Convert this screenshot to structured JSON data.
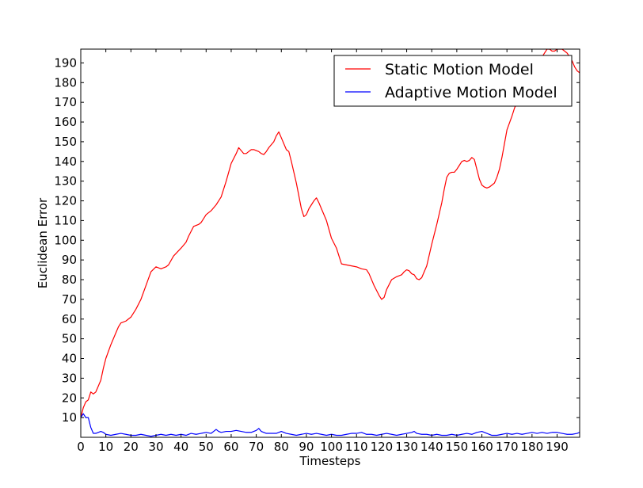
{
  "chart_data": {
    "type": "line",
    "title": "",
    "xlabel": "Timesteps",
    "ylabel": "Euclidean Error",
    "xlim": [
      0,
      199
    ],
    "ylim": [
      0,
      197
    ],
    "xticks": [
      0,
      10,
      20,
      30,
      40,
      50,
      60,
      70,
      80,
      90,
      100,
      110,
      120,
      130,
      140,
      150,
      160,
      170,
      180,
      190
    ],
    "yticks": [
      10,
      20,
      30,
      40,
      50,
      60,
      70,
      80,
      90,
      100,
      110,
      120,
      130,
      140,
      150,
      160,
      170,
      180,
      190
    ],
    "grid": false,
    "legend_position": "top-right",
    "series": [
      {
        "name": "Static Motion Model",
        "color": "#ff0000",
        "points": [
          [
            0,
            10
          ],
          [
            1,
            15
          ],
          [
            2,
            18
          ],
          [
            3,
            19
          ],
          [
            4,
            23
          ],
          [
            5,
            22
          ],
          [
            6,
            23
          ],
          [
            7,
            26
          ],
          [
            8,
            29
          ],
          [
            9,
            35
          ],
          [
            10,
            40
          ],
          [
            12,
            47
          ],
          [
            14,
            53
          ],
          [
            15,
            56
          ],
          [
            16,
            58
          ],
          [
            18,
            59
          ],
          [
            20,
            61
          ],
          [
            22,
            65
          ],
          [
            24,
            70
          ],
          [
            26,
            77
          ],
          [
            28,
            84
          ],
          [
            30,
            86.5
          ],
          [
            32,
            85.5
          ],
          [
            34,
            86.5
          ],
          [
            35,
            87.5
          ],
          [
            37,
            92
          ],
          [
            40,
            96
          ],
          [
            42,
            99
          ],
          [
            43,
            102
          ],
          [
            45,
            107
          ],
          [
            47,
            108
          ],
          [
            48,
            109
          ],
          [
            50,
            113
          ],
          [
            52,
            115
          ],
          [
            54,
            118
          ],
          [
            55,
            120
          ],
          [
            56,
            122
          ],
          [
            58,
            130
          ],
          [
            60,
            139
          ],
          [
            62,
            144
          ],
          [
            63,
            147
          ],
          [
            64,
            145.5
          ],
          [
            65,
            144
          ],
          [
            66,
            144
          ],
          [
            67,
            145
          ],
          [
            68,
            146
          ],
          [
            69,
            146
          ],
          [
            70,
            145.5
          ],
          [
            71,
            145
          ],
          [
            72,
            144
          ],
          [
            73,
            143.5
          ],
          [
            74,
            145
          ],
          [
            75,
            147
          ],
          [
            77,
            150
          ],
          [
            78,
            153
          ],
          [
            79,
            155
          ],
          [
            80,
            152
          ],
          [
            82,
            146
          ],
          [
            83,
            145
          ],
          [
            84,
            140
          ],
          [
            86,
            129
          ],
          [
            88,
            116
          ],
          [
            89,
            112
          ],
          [
            90,
            113
          ],
          [
            91,
            116
          ],
          [
            92,
            118
          ],
          [
            93,
            120
          ],
          [
            94,
            121.5
          ],
          [
            95,
            119
          ],
          [
            96,
            116
          ],
          [
            98,
            110
          ],
          [
            100,
            101
          ],
          [
            102,
            96
          ],
          [
            103,
            92
          ],
          [
            104,
            88
          ],
          [
            106,
            87.5
          ],
          [
            108,
            87
          ],
          [
            110,
            86.5
          ],
          [
            112,
            85.5
          ],
          [
            114,
            85
          ],
          [
            115,
            83
          ],
          [
            117,
            77
          ],
          [
            119,
            72
          ],
          [
            120,
            70
          ],
          [
            121,
            71
          ],
          [
            122,
            75
          ],
          [
            124,
            80
          ],
          [
            126,
            81.5
          ],
          [
            128,
            82.5
          ],
          [
            129,
            84
          ],
          [
            130,
            85
          ],
          [
            131,
            84.5
          ],
          [
            132,
            83
          ],
          [
            133,
            82.5
          ],
          [
            134,
            80.5
          ],
          [
            135,
            80
          ],
          [
            136,
            81
          ],
          [
            138,
            87
          ],
          [
            140,
            98
          ],
          [
            142,
            108
          ],
          [
            144,
            119
          ],
          [
            145,
            126
          ],
          [
            146,
            132
          ],
          [
            147,
            134
          ],
          [
            148,
            134.5
          ],
          [
            149,
            134.5
          ],
          [
            150,
            136
          ],
          [
            151,
            138
          ],
          [
            152,
            140
          ],
          [
            153,
            140.5
          ],
          [
            154,
            140
          ],
          [
            155,
            140.5
          ],
          [
            156,
            142
          ],
          [
            157,
            141
          ],
          [
            158,
            136
          ],
          [
            159,
            131
          ],
          [
            160,
            128
          ],
          [
            161,
            127
          ],
          [
            162,
            126.5
          ],
          [
            163,
            127
          ],
          [
            165,
            129
          ],
          [
            166,
            132
          ],
          [
            167,
            136
          ],
          [
            168,
            142
          ],
          [
            169,
            149
          ],
          [
            170,
            156
          ],
          [
            172,
            163
          ],
          [
            173,
            167
          ],
          [
            174,
            170
          ],
          [
            175,
            172
          ],
          [
            176,
            175
          ],
          [
            177,
            178
          ],
          [
            178,
            181
          ],
          [
            179,
            183
          ],
          [
            180,
            185
          ],
          [
            181,
            187
          ],
          [
            182,
            189
          ],
          [
            183,
            191
          ],
          [
            184,
            193
          ],
          [
            185,
            195
          ],
          [
            186,
            197
          ],
          [
            187,
            197
          ],
          [
            188,
            196
          ],
          [
            189,
            196
          ],
          [
            190,
            197
          ],
          [
            191,
            197
          ],
          [
            192,
            197
          ],
          [
            193,
            196
          ],
          [
            194,
            195
          ],
          [
            195,
            193
          ],
          [
            196,
            191
          ],
          [
            197,
            188
          ],
          [
            198,
            186
          ],
          [
            199,
            185
          ]
        ]
      },
      {
        "name": "Adaptive Motion Model",
        "color": "#0000ff",
        "points": [
          [
            0,
            10
          ],
          [
            1,
            12
          ],
          [
            2,
            10
          ],
          [
            3,
            10
          ],
          [
            4,
            5
          ],
          [
            5,
            2
          ],
          [
            6,
            2
          ],
          [
            7,
            2.5
          ],
          [
            8,
            3
          ],
          [
            9,
            2.5
          ],
          [
            10,
            1.5
          ],
          [
            12,
            1
          ],
          [
            14,
            1.5
          ],
          [
            16,
            2
          ],
          [
            18,
            1.5
          ],
          [
            20,
            1
          ],
          [
            22,
            1
          ],
          [
            24,
            1.5
          ],
          [
            26,
            1
          ],
          [
            28,
            0.5
          ],
          [
            30,
            1
          ],
          [
            32,
            1.5
          ],
          [
            34,
            1
          ],
          [
            36,
            1.5
          ],
          [
            38,
            1
          ],
          [
            40,
            1.5
          ],
          [
            42,
            1
          ],
          [
            44,
            2
          ],
          [
            46,
            1.5
          ],
          [
            48,
            2
          ],
          [
            50,
            2.5
          ],
          [
            52,
            2
          ],
          [
            53,
            3
          ],
          [
            54,
            4
          ],
          [
            55,
            3
          ],
          [
            56,
            2.5
          ],
          [
            58,
            3
          ],
          [
            60,
            3
          ],
          [
            62,
            3.5
          ],
          [
            64,
            3
          ],
          [
            66,
            2.5
          ],
          [
            68,
            2.5
          ],
          [
            70,
            3.5
          ],
          [
            71,
            4.5
          ],
          [
            72,
            3
          ],
          [
            74,
            2
          ],
          [
            76,
            2
          ],
          [
            78,
            2
          ],
          [
            80,
            3
          ],
          [
            82,
            2
          ],
          [
            84,
            1.5
          ],
          [
            86,
            1
          ],
          [
            88,
            1.5
          ],
          [
            90,
            2
          ],
          [
            92,
            1.5
          ],
          [
            94,
            2
          ],
          [
            96,
            1.5
          ],
          [
            98,
            1
          ],
          [
            100,
            1.5
          ],
          [
            102,
            1
          ],
          [
            104,
            1
          ],
          [
            106,
            1.5
          ],
          [
            108,
            2
          ],
          [
            110,
            2
          ],
          [
            112,
            2.5
          ],
          [
            114,
            1.5
          ],
          [
            116,
            1.5
          ],
          [
            118,
            1
          ],
          [
            120,
            1.5
          ],
          [
            122,
            2
          ],
          [
            124,
            1.5
          ],
          [
            126,
            1
          ],
          [
            128,
            1.5
          ],
          [
            130,
            2
          ],
          [
            132,
            2.5
          ],
          [
            133,
            3
          ],
          [
            134,
            2
          ],
          [
            136,
            1.5
          ],
          [
            138,
            1.5
          ],
          [
            140,
            1
          ],
          [
            142,
            1.5
          ],
          [
            144,
            1
          ],
          [
            146,
            1
          ],
          [
            148,
            1.5
          ],
          [
            150,
            1
          ],
          [
            152,
            1.5
          ],
          [
            154,
            2
          ],
          [
            156,
            1.5
          ],
          [
            158,
            2.5
          ],
          [
            160,
            3
          ],
          [
            162,
            2
          ],
          [
            164,
            1
          ],
          [
            166,
            1
          ],
          [
            168,
            1.5
          ],
          [
            170,
            2
          ],
          [
            172,
            1.5
          ],
          [
            174,
            2
          ],
          [
            176,
            1.5
          ],
          [
            178,
            2
          ],
          [
            180,
            2.5
          ],
          [
            182,
            2
          ],
          [
            184,
            2.5
          ],
          [
            186,
            2
          ],
          [
            188,
            2.5
          ],
          [
            190,
            2.5
          ],
          [
            192,
            2
          ],
          [
            194,
            1.5
          ],
          [
            196,
            1.5
          ],
          [
            198,
            2
          ],
          [
            199,
            2.5
          ]
        ]
      }
    ]
  }
}
